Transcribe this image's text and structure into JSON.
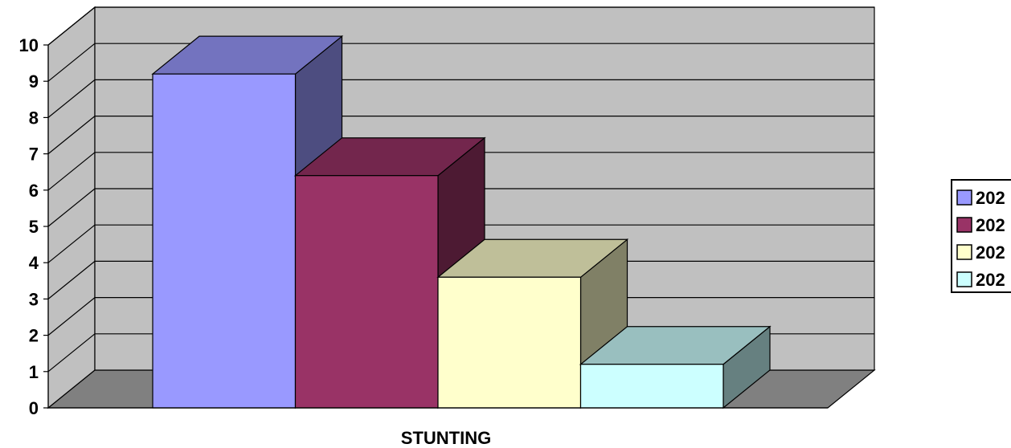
{
  "chart_data": {
    "type": "bar",
    "categories": [
      "STUNTING"
    ],
    "series": [
      {
        "name": "202",
        "values": [
          9.2
        ],
        "color": "#9999FF"
      },
      {
        "name": "202",
        "values": [
          6.4
        ],
        "color": "#993366"
      },
      {
        "name": "202",
        "values": [
          3.6
        ],
        "color": "#FFFFCC"
      },
      {
        "name": "202",
        "values": [
          1.2
        ],
        "color": "#CCFFFF"
      }
    ],
    "yticks": [
      "0",
      "1",
      "2",
      "3",
      "4",
      "5",
      "6",
      "7",
      "8",
      "9",
      "10"
    ],
    "ylim": [
      0,
      10
    ],
    "title": "",
    "xlabel": "",
    "ylabel": "",
    "grid": true,
    "legend": "right",
    "three_d": true,
    "wall_color": "#C0C0C0",
    "floor_color": "#808080"
  }
}
